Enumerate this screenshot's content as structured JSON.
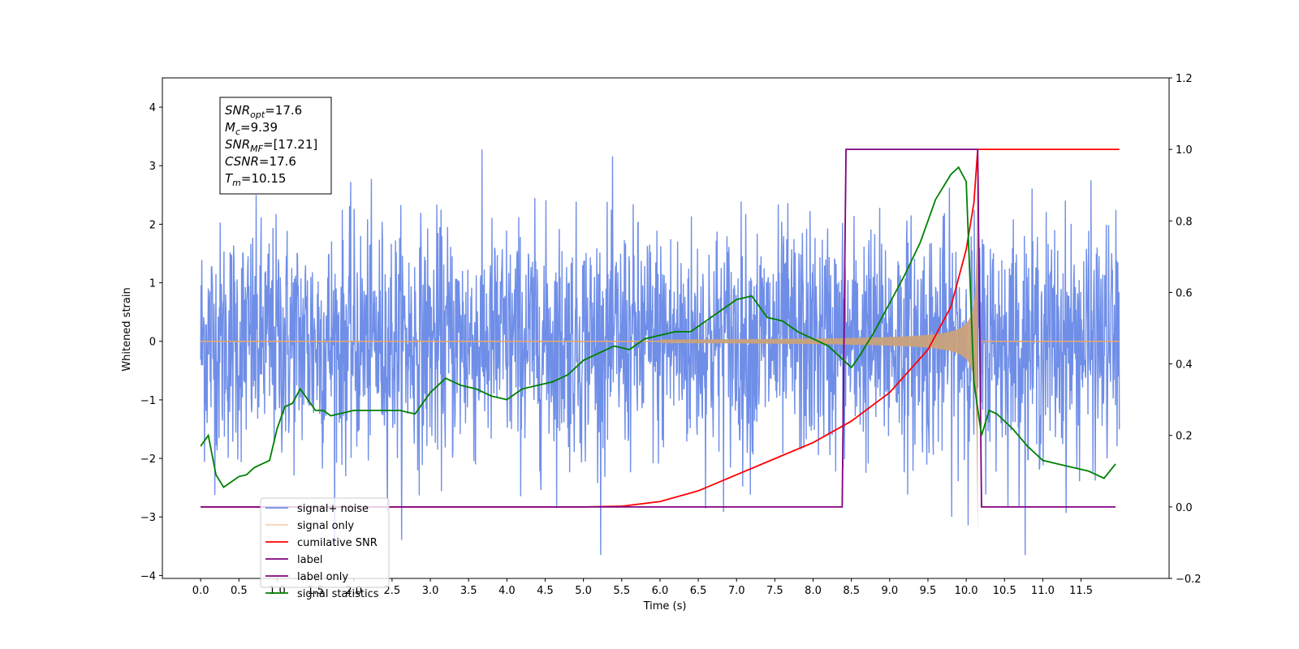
{
  "chart_data": {
    "type": "line",
    "title": "",
    "xlabel": "Time (s)",
    "ylabel": "Whitened strain",
    "xlim": [
      -0.5,
      12.65
    ],
    "ylim": [
      -4.05,
      4.5
    ],
    "y2lim": [
      -0.2,
      1.2
    ],
    "grid": false,
    "legend_position": "bottom-left",
    "x_ticks": [
      0.0,
      0.5,
      1.0,
      1.5,
      2.0,
      2.5,
      3.0,
      3.5,
      4.0,
      4.5,
      5.0,
      5.5,
      6.0,
      6.5,
      7.0,
      7.5,
      8.0,
      8.5,
      9.0,
      9.5,
      10.0,
      10.5,
      11.0,
      11.5
    ],
    "x_tick_labels": [
      "0.0",
      "0.5",
      "1.0",
      "1.5",
      "2.0",
      "2.5",
      "3.0",
      "3.5",
      "4.0",
      "4.5",
      "5.0",
      "5.5",
      "6.0",
      "6.5",
      "7.0",
      "7.5",
      "8.0",
      "8.5",
      "9.0",
      "9.5",
      "10.0",
      "10.5",
      "11.0",
      "11.5"
    ],
    "y_ticks": [
      -4,
      -3,
      -2,
      -1,
      0,
      1,
      2,
      3,
      4
    ],
    "y_tick_labels": [
      "−4",
      "−3",
      "−2",
      "−1",
      "0",
      "1",
      "2",
      "3",
      "4"
    ],
    "y2_ticks": [
      -0.2,
      0.0,
      0.2,
      0.4,
      0.6,
      0.8,
      1.0,
      1.2
    ],
    "y2_tick_labels": [
      "−0.2",
      "0.0",
      "0.2",
      "0.4",
      "0.6",
      "0.8",
      "1.0",
      "1.2"
    ],
    "annotation": [
      {
        "base": "SNR",
        "sub": "opt",
        "value": "=17.6"
      },
      {
        "base": "M",
        "sub": "c",
        "value": "=9.39"
      },
      {
        "base": "SNR",
        "sub": "MF",
        "value": "=[17.21]"
      },
      {
        "base": "CSNR",
        "sub": "",
        "value": "=17.6"
      },
      {
        "base": "T",
        "sub": "m",
        "value": "=10.15"
      }
    ],
    "series": [
      {
        "name": "signal+ noise",
        "color": "#6f8ee8",
        "axis": "left",
        "description_values": "white noise, std ~1.0, min -3.65, max 4.1, spanning t=0 to 12.0",
        "noise_sigma": 1.0,
        "t_start": 0.0,
        "t_end": 12.0
      },
      {
        "name": "signal only",
        "color": "#e9a866",
        "axis": "left",
        "chirp": {
          "t_start": 6.0,
          "t_merge": 10.15,
          "t_end": 12.0,
          "amp_at_start": 0.03,
          "amp_peak": 3.3
        }
      },
      {
        "name": "cumilative SNR",
        "color": "#ff0000",
        "axis": "right",
        "x": [
          0.0,
          5.0,
          5.5,
          6.0,
          6.5,
          7.0,
          7.5,
          8.0,
          8.5,
          9.0,
          9.5,
          9.8,
          10.0,
          10.1,
          10.15,
          12.0
        ],
        "values": [
          0.0,
          0.0,
          0.002,
          0.015,
          0.045,
          0.09,
          0.135,
          0.18,
          0.24,
          0.32,
          0.44,
          0.56,
          0.72,
          0.85,
          1.0,
          1.0
        ]
      },
      {
        "name": "label",
        "color": "#800080",
        "axis": "right",
        "x": [
          0.0,
          8.38,
          8.43,
          10.15,
          10.2,
          11.95
        ],
        "values": [
          0.0,
          0.0,
          1.0,
          1.0,
          0.0,
          0.0
        ]
      },
      {
        "name": "label only",
        "color": "#800080",
        "axis": "right",
        "hidden_behind_legend": true,
        "x": [],
        "values": []
      },
      {
        "name": "signal statistics",
        "color": "#008000",
        "axis": "right",
        "x": [
          0.0,
          0.1,
          0.2,
          0.3,
          0.4,
          0.5,
          0.6,
          0.7,
          0.8,
          0.9,
          1.0,
          1.1,
          1.2,
          1.3,
          1.4,
          1.5,
          1.6,
          1.7,
          1.8,
          1.9,
          2.0,
          2.2,
          2.4,
          2.6,
          2.8,
          3.0,
          3.2,
          3.4,
          3.6,
          3.8,
          4.0,
          4.2,
          4.4,
          4.6,
          4.8,
          5.0,
          5.2,
          5.4,
          5.6,
          5.8,
          6.0,
          6.2,
          6.4,
          6.6,
          6.8,
          7.0,
          7.2,
          7.4,
          7.6,
          7.8,
          8.0,
          8.2,
          8.4,
          8.5,
          8.6,
          8.8,
          9.0,
          9.2,
          9.4,
          9.6,
          9.8,
          9.9,
          10.0,
          10.1,
          10.2,
          10.3,
          10.4,
          10.6,
          10.8,
          11.0,
          11.2,
          11.4,
          11.6,
          11.8,
          11.95
        ],
        "values": [
          0.17,
          0.2,
          0.09,
          0.055,
          0.07,
          0.085,
          0.09,
          0.11,
          0.12,
          0.13,
          0.22,
          0.28,
          0.29,
          0.33,
          0.3,
          0.27,
          0.27,
          0.255,
          0.26,
          0.265,
          0.27,
          0.27,
          0.27,
          0.27,
          0.26,
          0.32,
          0.36,
          0.34,
          0.33,
          0.31,
          0.3,
          0.33,
          0.34,
          0.35,
          0.37,
          0.41,
          0.43,
          0.45,
          0.44,
          0.47,
          0.48,
          0.49,
          0.49,
          0.52,
          0.55,
          0.58,
          0.59,
          0.53,
          0.52,
          0.49,
          0.47,
          0.45,
          0.41,
          0.39,
          0.42,
          0.49,
          0.57,
          0.65,
          0.74,
          0.86,
          0.93,
          0.95,
          0.91,
          0.35,
          0.2,
          0.27,
          0.26,
          0.22,
          0.17,
          0.13,
          0.12,
          0.11,
          0.1,
          0.08,
          0.12
        ]
      }
    ]
  }
}
